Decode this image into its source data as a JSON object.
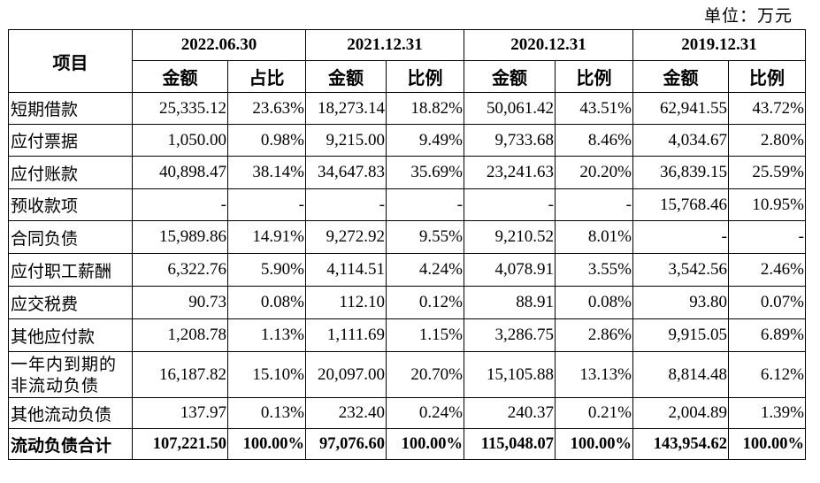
{
  "unit_label": "单位：万元",
  "header": {
    "item": "项目",
    "dates": [
      "2022.06.30",
      "2021.12.31",
      "2020.12.31",
      "2019.12.31"
    ],
    "sub": [
      "金额",
      "占比",
      "金额",
      "比例",
      "金额",
      "比例",
      "金额",
      "比例"
    ]
  },
  "rows": [
    {
      "label": "短期借款",
      "values": [
        "25,335.12",
        "23.63%",
        "18,273.14",
        "18.82%",
        "50,061.42",
        "43.51%",
        "62,941.55",
        "43.72%"
      ]
    },
    {
      "label": "应付票据",
      "values": [
        "1,050.00",
        "0.98%",
        "9,215.00",
        "9.49%",
        "9,733.68",
        "8.46%",
        "4,034.67",
        "2.80%"
      ]
    },
    {
      "label": "应付账款",
      "values": [
        "40,898.47",
        "38.14%",
        "34,647.83",
        "35.69%",
        "23,241.63",
        "20.20%",
        "36,839.15",
        "25.59%"
      ]
    },
    {
      "label": "预收款项",
      "values": [
        "-",
        "-",
        "-",
        "-",
        "-",
        "-",
        "15,768.46",
        "10.95%"
      ]
    },
    {
      "label": "合同负债",
      "values": [
        "15,989.86",
        "14.91%",
        "9,272.92",
        "9.55%",
        "9,210.52",
        "8.01%",
        "-",
        "-"
      ]
    },
    {
      "label": "应付职工薪酬",
      "values": [
        "6,322.76",
        "5.90%",
        "4,114.51",
        "4.24%",
        "4,078.91",
        "3.55%",
        "3,542.56",
        "2.46%"
      ]
    },
    {
      "label": "应交税费",
      "values": [
        "90.73",
        "0.08%",
        "112.10",
        "0.12%",
        "88.91",
        "0.08%",
        "93.80",
        "0.07%"
      ]
    },
    {
      "label": "其他应付款",
      "values": [
        "1,208.78",
        "1.13%",
        "1,111.69",
        "1.15%",
        "3,286.75",
        "2.86%",
        "9,915.05",
        "6.89%"
      ]
    },
    {
      "label": "一年内到期的非流动负债",
      "values": [
        "16,187.82",
        "15.10%",
        "20,097.00",
        "20.70%",
        "15,105.88",
        "13.13%",
        "8,814.48",
        "6.12%"
      ]
    },
    {
      "label": "其他流动负债",
      "values": [
        "137.97",
        "0.13%",
        "232.40",
        "0.24%",
        "240.37",
        "0.21%",
        "2,004.89",
        "1.39%"
      ]
    }
  ],
  "total": {
    "label": "流动负债合计",
    "values": [
      "107,221.50",
      "100.00%",
      "97,076.60",
      "100.00%",
      "115,048.07",
      "100.00%",
      "143,954.62",
      "100.00%"
    ]
  }
}
